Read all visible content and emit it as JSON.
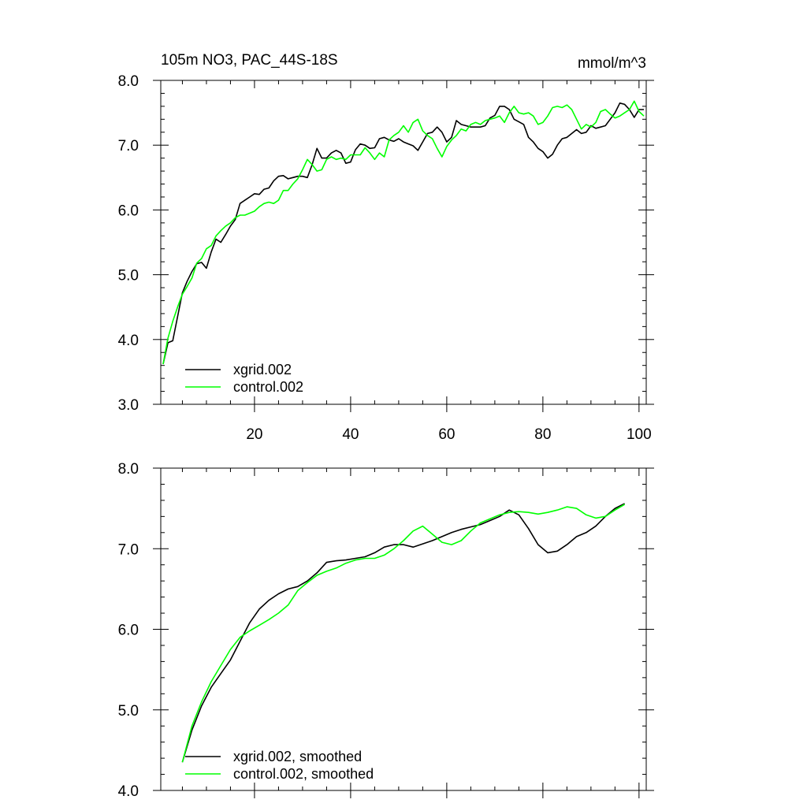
{
  "chart_data": [
    {
      "type": "line",
      "title": "105m NO3, PAC_44S-18S",
      "units": "mmol/m^3",
      "xlim": [
        0.5,
        101.5
      ],
      "ylim": [
        3.0,
        8.0
      ],
      "xticks": [
        20,
        40,
        60,
        80,
        100
      ],
      "xtick_labels": [
        "20",
        "40",
        "60",
        "80",
        "100"
      ],
      "yticks": [
        3.0,
        4.0,
        5.0,
        6.0,
        7.0,
        8.0
      ],
      "ytick_labels": [
        "3.0",
        "4.0",
        "5.0",
        "6.0",
        "7.0",
        "8.0"
      ],
      "legend_position": "bottom-left",
      "series": [
        {
          "name": "xgrid.002",
          "color": "#000000",
          "x": [
            1,
            2,
            3,
            4,
            5,
            6,
            7,
            8,
            9,
            10,
            11,
            12,
            13,
            14,
            15,
            16,
            17,
            18,
            19,
            20,
            21,
            22,
            23,
            24,
            25,
            26,
            27,
            28,
            29,
            30,
            31,
            32,
            33,
            34,
            35,
            36,
            37,
            38,
            39,
            40,
            41,
            42,
            43,
            44,
            45,
            46,
            47,
            48,
            49,
            50,
            51,
            52,
            53,
            54,
            55,
            56,
            57,
            58,
            59,
            60,
            61,
            62,
            63,
            64,
            65,
            66,
            67,
            68,
            69,
            70,
            71,
            72,
            73,
            74,
            75,
            76,
            77,
            78,
            79,
            80,
            81,
            82,
            83,
            84,
            85,
            86,
            87,
            88,
            89,
            90,
            91,
            92,
            93,
            94,
            95,
            96,
            97,
            98,
            99,
            100,
            101
          ],
          "values": [
            3.62,
            3.95,
            3.98,
            4.35,
            4.72,
            4.9,
            5.05,
            5.17,
            5.19,
            5.1,
            5.35,
            5.55,
            5.5,
            5.62,
            5.75,
            5.85,
            6.1,
            6.15,
            6.2,
            6.25,
            6.24,
            6.32,
            6.34,
            6.45,
            6.52,
            6.53,
            6.48,
            6.5,
            6.52,
            6.52,
            6.5,
            6.7,
            6.95,
            6.8,
            6.8,
            6.88,
            6.92,
            6.88,
            6.72,
            6.74,
            6.93,
            7.02,
            7.0,
            6.95,
            6.96,
            7.1,
            7.12,
            7.08,
            7.06,
            7.1,
            7.05,
            7.02,
            6.99,
            6.92,
            7.05,
            7.18,
            7.2,
            7.28,
            7.2,
            7.05,
            7.12,
            7.38,
            7.32,
            7.3,
            7.28,
            7.28,
            7.28,
            7.3,
            7.42,
            7.46,
            7.6,
            7.6,
            7.55,
            7.4,
            7.36,
            7.32,
            7.12,
            7.05,
            6.95,
            6.9,
            6.8,
            6.86,
            7.0,
            7.1,
            7.12,
            7.18,
            7.24,
            7.18,
            7.2,
            7.3,
            7.26,
            7.28,
            7.3,
            7.4,
            7.5,
            7.65,
            7.63,
            7.55,
            7.43,
            7.55,
            7.55
          ]
        },
        {
          "name": "control.002",
          "color": "#00ff00",
          "x": [
            1,
            2,
            3,
            4,
            5,
            6,
            7,
            8,
            9,
            10,
            11,
            12,
            13,
            14,
            15,
            16,
            17,
            18,
            19,
            20,
            21,
            22,
            23,
            24,
            25,
            26,
            27,
            28,
            29,
            30,
            31,
            32,
            33,
            34,
            35,
            36,
            37,
            38,
            39,
            40,
            41,
            42,
            43,
            44,
            45,
            46,
            47,
            48,
            49,
            50,
            51,
            52,
            53,
            54,
            55,
            56,
            57,
            58,
            59,
            60,
            61,
            62,
            63,
            64,
            65,
            66,
            67,
            68,
            69,
            70,
            71,
            72,
            73,
            74,
            75,
            76,
            77,
            78,
            79,
            80,
            81,
            82,
            83,
            84,
            85,
            86,
            87,
            88,
            89,
            90,
            91,
            92,
            93,
            94,
            95,
            96,
            97,
            98,
            99,
            100,
            101
          ],
          "values": [
            3.62,
            4.02,
            4.28,
            4.5,
            4.7,
            4.82,
            4.95,
            5.18,
            5.25,
            5.4,
            5.45,
            5.6,
            5.68,
            5.75,
            5.8,
            5.88,
            5.92,
            5.92,
            5.95,
            5.98,
            6.05,
            6.1,
            6.12,
            6.1,
            6.15,
            6.3,
            6.3,
            6.4,
            6.48,
            6.62,
            6.78,
            6.7,
            6.6,
            6.62,
            6.78,
            6.82,
            6.78,
            6.8,
            6.78,
            6.85,
            6.85,
            6.85,
            6.96,
            6.88,
            6.78,
            6.88,
            6.82,
            7.08,
            7.15,
            7.2,
            7.3,
            7.2,
            7.35,
            7.4,
            7.22,
            7.15,
            7.1,
            6.95,
            6.82,
            6.98,
            7.08,
            7.15,
            7.25,
            7.22,
            7.32,
            7.35,
            7.32,
            7.38,
            7.4,
            7.42,
            7.45,
            7.35,
            7.5,
            7.6,
            7.5,
            7.48,
            7.5,
            7.45,
            7.32,
            7.35,
            7.45,
            7.58,
            7.6,
            7.58,
            7.62,
            7.55,
            7.4,
            7.25,
            7.32,
            7.28,
            7.35,
            7.52,
            7.55,
            7.48,
            7.42,
            7.45,
            7.5,
            7.55,
            7.68,
            7.52,
            7.45
          ]
        }
      ]
    },
    {
      "type": "line",
      "xlim": [
        0.5,
        101.5
      ],
      "ylim": [
        4.0,
        8.0
      ],
      "xticks": [
        20,
        40,
        60,
        80,
        100
      ],
      "yticks": [
        4.0,
        5.0,
        6.0,
        7.0,
        8.0
      ],
      "ytick_labels": [
        "4.0",
        "5.0",
        "6.0",
        "7.0",
        "8.0"
      ],
      "legend_position": "bottom-left",
      "series": [
        {
          "name": "xgrid.002, smoothed",
          "color": "#000000",
          "x": [
            5,
            7,
            9,
            11,
            13,
            15,
            17,
            19,
            21,
            23,
            25,
            27,
            29,
            31,
            33,
            35,
            37,
            39,
            41,
            43,
            45,
            47,
            49,
            51,
            53,
            55,
            57,
            59,
            61,
            63,
            65,
            67,
            69,
            71,
            73,
            75,
            77,
            79,
            81,
            83,
            85,
            87,
            89,
            91,
            93,
            95,
            97
          ],
          "values": [
            4.35,
            4.75,
            5.05,
            5.28,
            5.45,
            5.62,
            5.85,
            6.08,
            6.25,
            6.36,
            6.44,
            6.5,
            6.53,
            6.6,
            6.7,
            6.83,
            6.85,
            6.86,
            6.88,
            6.9,
            6.95,
            7.02,
            7.05,
            7.05,
            7.02,
            7.06,
            7.1,
            7.15,
            7.2,
            7.24,
            7.27,
            7.3,
            7.35,
            7.4,
            7.48,
            7.42,
            7.25,
            7.05,
            6.95,
            6.97,
            7.05,
            7.15,
            7.2,
            7.28,
            7.4,
            7.5,
            7.56
          ]
        },
        {
          "name": "control.002, smoothed",
          "color": "#00ff00",
          "x": [
            5,
            7,
            9,
            11,
            13,
            15,
            17,
            19,
            21,
            23,
            25,
            27,
            29,
            31,
            33,
            35,
            37,
            39,
            41,
            43,
            45,
            47,
            49,
            51,
            53,
            55,
            57,
            59,
            61,
            63,
            65,
            67,
            69,
            71,
            73,
            75,
            77,
            79,
            81,
            83,
            85,
            87,
            89,
            91,
            93,
            95,
            97
          ],
          "values": [
            4.35,
            4.8,
            5.1,
            5.35,
            5.55,
            5.75,
            5.9,
            5.98,
            6.05,
            6.12,
            6.2,
            6.3,
            6.48,
            6.58,
            6.67,
            6.72,
            6.76,
            6.82,
            6.86,
            6.88,
            6.88,
            6.92,
            7.0,
            7.1,
            7.22,
            7.28,
            7.18,
            7.08,
            7.05,
            7.1,
            7.22,
            7.32,
            7.37,
            7.42,
            7.45,
            7.46,
            7.45,
            7.43,
            7.45,
            7.48,
            7.52,
            7.5,
            7.42,
            7.38,
            7.4,
            7.48,
            7.55
          ]
        }
      ]
    }
  ]
}
